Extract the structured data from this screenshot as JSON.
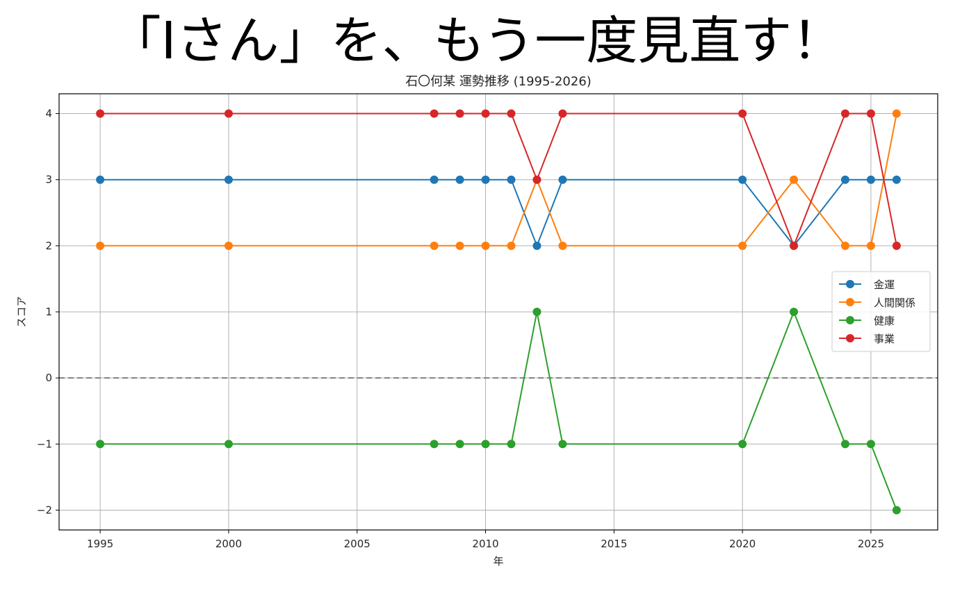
{
  "banner": "「Iさん」を、もう一度見直す！",
  "colors": {
    "kinun": "#1f77b4",
    "ningen": "#ff7f0e",
    "kenko": "#2ca02c",
    "jigyo": "#d62728",
    "zero_line": "#808080",
    "grid": "#b0b0b0"
  },
  "chart_data": {
    "type": "line",
    "title": "石〇何某 運勢推移 (1995-2026)",
    "xlabel": "年",
    "ylabel": "スコア",
    "x": [
      1995,
      2000,
      2008,
      2009,
      2010,
      2011,
      2012,
      2013,
      2020,
      2022,
      2024,
      2025,
      2026
    ],
    "xlim": [
      1993.4,
      2027.6
    ],
    "ylim": [
      -2.3,
      4.3
    ],
    "xticks": [
      1995,
      2000,
      2005,
      2010,
      2015,
      2020,
      2025
    ],
    "yticks": [
      -2,
      -1,
      0,
      1,
      2,
      3,
      4
    ],
    "ytick_labels": [
      "−2",
      "−1",
      "0",
      "1",
      "2",
      "3",
      "4"
    ],
    "grid": true,
    "reference_line": {
      "y": 0,
      "style": "dashed"
    },
    "legend_position": "center-right",
    "series": [
      {
        "name": "金運",
        "color_key": "kinun",
        "values": [
          3,
          3,
          3,
          3,
          3,
          3,
          2,
          3,
          3,
          2,
          3,
          3,
          3
        ]
      },
      {
        "name": "人間関係",
        "color_key": "ningen",
        "values": [
          2,
          2,
          2,
          2,
          2,
          2,
          3,
          2,
          2,
          3,
          2,
          2,
          4
        ]
      },
      {
        "name": "健康",
        "color_key": "kenko",
        "values": [
          -1,
          -1,
          -1,
          -1,
          -1,
          -1,
          1,
          -1,
          -1,
          1,
          -1,
          -1,
          -2
        ]
      },
      {
        "name": "事業",
        "color_key": "jigyo",
        "values": [
          4,
          4,
          4,
          4,
          4,
          4,
          3,
          4,
          4,
          2,
          4,
          4,
          2
        ]
      }
    ]
  }
}
